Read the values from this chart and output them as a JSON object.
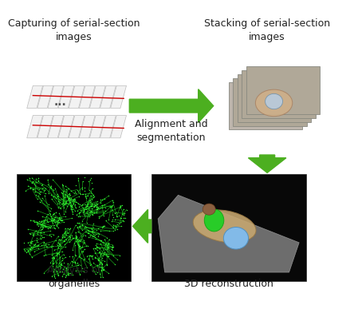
{
  "background_color": "#ffffff",
  "arrow_color": "#4caf20",
  "label_capturing": "Capturing of serial-section\nimages",
  "label_stacking": "Stacking of serial-section\nimages",
  "label_3d": "3D reconstruction",
  "label_analysis": "Analysis of\norganelles",
  "label_arrow": "Alignment and\nsegmentation",
  "font_size_label": 9,
  "font_size_arrow_label": 9
}
